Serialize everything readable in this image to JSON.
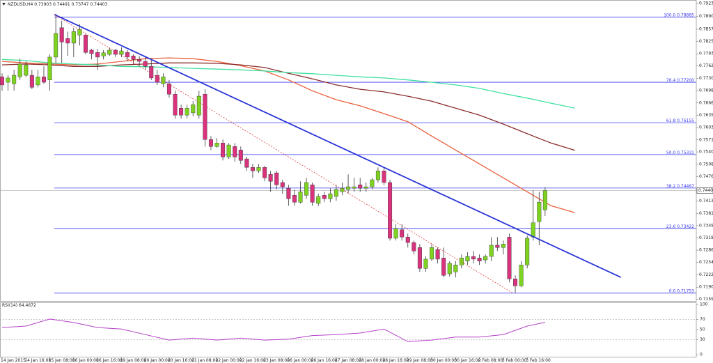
{
  "header": {
    "symbol": "NZDUSD,H4",
    "ohlc": [
      0.73903,
      0.74491,
      0.73747,
      0.74403
    ]
  },
  "chart_data": {
    "type": "candlestick",
    "categories": [
      "14 Jan 2015",
      null,
      null,
      null,
      "14 Jan 16:00",
      null,
      null,
      null,
      "15 Jan 08:00",
      null,
      null,
      null,
      "16 Jan 00:00",
      null,
      null,
      null,
      "16 Jan 16:00",
      null,
      null,
      null,
      "19 Jan 08:00",
      null,
      null,
      null,
      "20 Jan 00:00",
      null,
      null,
      null,
      "20 Jan 16:00",
      null,
      null,
      null,
      "21 Jan 08:00",
      null,
      null,
      null,
      "22 Jan 00:00",
      null,
      null,
      null,
      "22 Jan 16:00",
      null,
      null,
      null,
      "23 Jan 08:00",
      null,
      null,
      null,
      "26 Jan 00:00",
      null,
      null,
      null,
      "26 Jan 16:00",
      null,
      null,
      null,
      "27 Jan 08:00",
      null,
      null,
      null,
      "28 Jan 00:00",
      null,
      null,
      null,
      "28 Jan 16:00",
      null,
      null,
      null,
      "29 Jan 08:00",
      null,
      null,
      null,
      "30 Jan 00:00",
      null,
      null,
      null,
      "30 Jan 16:00",
      null,
      null,
      null,
      "2 Feb 08:00",
      null,
      null,
      null,
      "3 Feb 00:00",
      null,
      null,
      null,
      "3 Feb 16:00",
      null,
      null,
      null
    ],
    "candles": [
      [
        0.7734,
        0.7743,
        0.7698,
        0.7713
      ],
      [
        0.772,
        0.7738,
        0.7698,
        0.7731
      ],
      [
        0.7716,
        0.7752,
        0.7698,
        0.7738
      ],
      [
        0.7734,
        0.7781,
        0.7726,
        0.7767
      ],
      [
        0.7738,
        0.7774,
        0.7734,
        0.7765
      ],
      [
        0.7738,
        0.7752,
        0.7702,
        0.7707
      ],
      [
        0.7713,
        0.7752,
        0.7707,
        0.7734
      ],
      [
        0.7734,
        0.7761,
        0.7716,
        0.772
      ],
      [
        0.7726,
        0.7792,
        0.7698,
        0.7785
      ],
      [
        0.7785,
        0.7897,
        0.777,
        0.7846
      ],
      [
        0.7861,
        0.7879,
        0.777,
        0.7824
      ],
      [
        0.7833,
        0.7851,
        0.7788,
        0.7821
      ],
      [
        0.7821,
        0.7861,
        0.7785,
        0.7851
      ],
      [
        0.7842,
        0.787,
        0.7815,
        0.7857
      ],
      [
        0.7842,
        0.7846,
        0.7792,
        0.7797
      ],
      [
        0.7803,
        0.7806,
        0.7779,
        0.7794
      ],
      [
        0.7797,
        0.7806,
        0.7752,
        0.7785
      ],
      [
        0.7788,
        0.7803,
        0.7779,
        0.7796
      ],
      [
        0.7792,
        0.781,
        0.7788,
        0.7803
      ],
      [
        0.7803,
        0.7806,
        0.7785,
        0.7792
      ],
      [
        0.7792,
        0.781,
        0.7785,
        0.7801
      ],
      [
        0.7797,
        0.7803,
        0.7774,
        0.7785
      ],
      [
        0.7788,
        0.7792,
        0.7767,
        0.7779
      ],
      [
        0.7779,
        0.7788,
        0.7761,
        0.7774
      ],
      [
        0.7774,
        0.7788,
        0.7752,
        0.7761
      ],
      [
        0.7761,
        0.7779,
        0.7726,
        0.7731
      ],
      [
        0.7738,
        0.7752,
        0.7713,
        0.772
      ],
      [
        0.7716,
        0.7743,
        0.7707,
        0.7734
      ],
      [
        0.7716,
        0.7726,
        0.768,
        0.7689
      ],
      [
        0.7689,
        0.7698,
        0.7626,
        0.7635
      ],
      [
        0.7653,
        0.7662,
        0.7626,
        0.7635
      ],
      [
        0.7635,
        0.7662,
        0.7626,
        0.7653
      ],
      [
        0.7641,
        0.7671,
        0.7632,
        0.7662
      ],
      [
        0.7635,
        0.7698,
        0.7626,
        0.7684
      ],
      [
        0.7689,
        0.7702,
        0.7554,
        0.7572
      ],
      [
        0.7572,
        0.7581,
        0.7545,
        0.7554
      ],
      [
        0.7554,
        0.7576,
        0.7551,
        0.7563
      ],
      [
        0.7563,
        0.7572,
        0.7518,
        0.7527
      ],
      [
        0.7527,
        0.7563,
        0.7522,
        0.7558
      ],
      [
        0.7554,
        0.7563,
        0.7515,
        0.7527
      ],
      [
        0.7545,
        0.7554,
        0.7509,
        0.7518
      ],
      [
        0.7522,
        0.7527,
        0.7491,
        0.75
      ],
      [
        0.75,
        0.7509,
        0.7473,
        0.7491
      ],
      [
        0.7491,
        0.7509,
        0.7486,
        0.75
      ],
      [
        0.75,
        0.7504,
        0.7464,
        0.7473
      ],
      [
        0.7482,
        0.7491,
        0.7437,
        0.7464
      ],
      [
        0.7486,
        0.7491,
        0.7443,
        0.7455
      ],
      [
        0.7461,
        0.7468,
        0.7432,
        0.745
      ],
      [
        0.7446,
        0.7455,
        0.7401,
        0.7419
      ],
      [
        0.7428,
        0.7443,
        0.7401,
        0.741
      ],
      [
        0.741,
        0.7464,
        0.7407,
        0.7437
      ],
      [
        0.7428,
        0.7473,
        0.7419,
        0.7461
      ],
      [
        0.7455,
        0.7461,
        0.7401,
        0.741
      ],
      [
        0.7407,
        0.7432,
        0.74,
        0.7425
      ],
      [
        0.7428,
        0.7437,
        0.741,
        0.7419
      ],
      [
        0.7419,
        0.7446,
        0.741,
        0.7432
      ],
      [
        0.7425,
        0.7455,
        0.7414,
        0.7443
      ],
      [
        0.7437,
        0.7461,
        0.7428,
        0.7446
      ],
      [
        0.7443,
        0.7482,
        0.7432,
        0.745
      ],
      [
        0.7446,
        0.7473,
        0.7437,
        0.745
      ],
      [
        0.7455,
        0.7473,
        0.7437,
        0.7446
      ],
      [
        0.7446,
        0.7461,
        0.7437,
        0.745
      ],
      [
        0.745,
        0.7473,
        0.7443,
        0.7468
      ],
      [
        0.7468,
        0.75,
        0.7461,
        0.7491
      ],
      [
        0.7491,
        0.75,
        0.7454,
        0.7461
      ],
      [
        0.7461,
        0.7468,
        0.7311,
        0.7317
      ],
      [
        0.7317,
        0.7353,
        0.7311,
        0.7342
      ],
      [
        0.7339,
        0.7353,
        0.7311,
        0.732
      ],
      [
        0.732,
        0.7329,
        0.7293,
        0.7306
      ],
      [
        0.7306,
        0.7311,
        0.7275,
        0.7284
      ],
      [
        0.7293,
        0.7302,
        0.723,
        0.7239
      ],
      [
        0.7239,
        0.727,
        0.723,
        0.7263
      ],
      [
        0.7263,
        0.7302,
        0.7258,
        0.7293
      ],
      [
        0.7288,
        0.7293,
        0.7252,
        0.7263
      ],
      [
        0.7266,
        0.7293,
        0.7216,
        0.7221
      ],
      [
        0.7225,
        0.7258,
        0.7218,
        0.7252
      ],
      [
        0.723,
        0.7258,
        0.7216,
        0.7248
      ],
      [
        0.7248,
        0.7275,
        0.7239,
        0.7266
      ],
      [
        0.7258,
        0.7281,
        0.7248,
        0.727
      ],
      [
        0.727,
        0.7284,
        0.7252,
        0.7263
      ],
      [
        0.7266,
        0.7275,
        0.7248,
        0.7258
      ],
      [
        0.7261,
        0.7275,
        0.7252,
        0.727
      ],
      [
        0.727,
        0.732,
        0.7258,
        0.7299
      ],
      [
        0.7299,
        0.732,
        0.7284,
        0.7293
      ],
      [
        0.7293,
        0.7311,
        0.7275,
        0.7302
      ],
      [
        0.732,
        0.7329,
        0.7203,
        0.7212
      ],
      [
        0.7212,
        0.7221,
        0.7176,
        0.7194
      ],
      [
        0.7194,
        0.7258,
        0.7191,
        0.7248
      ],
      [
        0.7248,
        0.7324,
        0.7239,
        0.7317
      ],
      [
        0.732,
        0.7441,
        0.7311,
        0.7357
      ],
      [
        0.736,
        0.7437,
        0.7299,
        0.741
      ],
      [
        0.73903,
        0.74491,
        0.73747,
        0.74403
      ]
    ],
    "bull_color": "#7ed321",
    "bear_color": "#d8337c",
    "ylim": [
      0.71549,
      0.79325
    ],
    "yticks": [
      0.79235,
      {
        "value": 0.789,
        "label": "0.78900"
      },
      {
        "value": 0.7857,
        "label": "0.78570"
      },
      0.78255,
      0.77935,
      {
        "value": 0.7762,
        "label": "0.77620"
      },
      {
        "value": 0.773,
        "label": "0.77300"
      },
      0.76985,
      0.76665,
      {
        "value": 0.7635,
        "label": "0.76350"
      },
      {
        "value": 0.7603,
        "label": "0.76030"
      },
      {
        "value": 0.7571,
        "label": "0.75710"
      },
      {
        "value": 0.754,
        "label": "0.75400"
      },
      {
        "value": 0.7508,
        "label": "0.75080"
      },
      0.74765,
      {
        "value": 0.7413,
        "label": "0.74130"
      },
      {
        "value": 0.7381,
        "label": "0.73810"
      },
      0.73495,
      {
        "value": 0.7318,
        "label": "0.73180"
      },
      {
        "value": 0.7286,
        "label": "0.72860"
      },
      0.72545,
      0.72225,
      0.71905,
      {
        "value": 0.7159,
        "label": "0.71590"
      }
    ],
    "last_price": 0.74403,
    "fibonacci": {
      "start_x": 8.75,
      "color": "#3a3af0",
      "levels": [
        {
          "ratio": "100.0",
          "price": 0.78885
        },
        {
          "ratio": "76.4",
          "price": {
            "value": 0.772,
            "label": "0.77200"
          }
        },
        {
          "ratio": "61.8",
          "price": 0.76155
        },
        {
          "ratio": "50.0",
          "price": 0.75331
        },
        {
          "ratio": "38.2",
          "price": 0.74467
        },
        {
          "ratio": "23.6",
          "price": 0.73422
        },
        {
          "ratio": "0.0",
          "price": 0.71753
        }
      ]
    },
    "overlays": [
      {
        "color": "#e9603c",
        "x": [
          0,
          4,
          8,
          12,
          16,
          20,
          24,
          28,
          32,
          36,
          40,
          44,
          48,
          52,
          56,
          60,
          64,
          68,
          72,
          76,
          80,
          84,
          88,
          92,
          96
        ],
        "values": [
          0.7774,
          0.777,
          0.7767,
          0.7765,
          0.7767,
          0.7774,
          0.7781,
          0.7783,
          0.7781,
          0.7774,
          0.7763,
          0.7749,
          0.7726,
          0.7698,
          0.7675,
          0.7659,
          0.7639,
          0.7618,
          0.7581,
          0.7545,
          0.7509,
          0.7473,
          0.7437,
          0.7401,
          0.7383
        ]
      },
      {
        "color": "#8b2c2c",
        "x": [
          0,
          4,
          8,
          12,
          16,
          20,
          24,
          28,
          32,
          36,
          40,
          44,
          48,
          52,
          56,
          60,
          64,
          68,
          72,
          76,
          80,
          84,
          88,
          92,
          96
        ],
        "values": [
          0.7765,
          0.7767,
          0.7765,
          0.7761,
          0.7761,
          0.7765,
          0.7767,
          0.777,
          0.777,
          0.7769,
          0.7765,
          0.7758,
          0.7743,
          0.7729,
          0.7713,
          0.7702,
          0.7695,
          0.7684,
          0.7671,
          0.7653,
          0.7635,
          0.7612,
          0.7587,
          0.7563,
          0.7544
        ]
      },
      {
        "color": "#3fe0a0",
        "x": [
          0,
          4,
          8,
          12,
          16,
          20,
          24,
          28,
          32,
          36,
          40,
          44,
          48,
          52,
          56,
          60,
          64,
          68,
          72,
          76,
          80,
          84,
          88,
          92,
          96
        ],
        "values": [
          0.7779,
          0.7776,
          0.777,
          0.7767,
          0.7765,
          0.7761,
          0.776,
          0.7758,
          0.7756,
          0.7754,
          0.7752,
          0.7749,
          0.7745,
          0.7742,
          0.7738,
          0.7734,
          0.7731,
          0.7726,
          0.772,
          0.7713,
          0.7704,
          0.7691,
          0.7679,
          0.7666,
          0.7653
        ]
      }
    ],
    "trendlines": [
      {
        "color": "#2a35d8",
        "style": "solid",
        "x": [
          8.75,
          103.7
        ],
        "values": [
          0.7895,
          0.7216
        ]
      },
      {
        "color": "#e04040",
        "style": "dotted",
        "x": [
          8.75,
          85.5
        ],
        "values": [
          0.7895,
          0.7176
        ]
      }
    ],
    "indicator": {
      "type": "line",
      "label": "RSI(14)",
      "color": "#b540c8",
      "x": [
        0,
        4,
        8,
        12,
        16,
        20,
        24,
        28,
        32,
        36,
        40,
        44,
        48,
        52,
        56,
        60,
        64,
        68,
        72,
        76,
        80,
        84,
        88,
        91
      ],
      "values": [
        54,
        57,
        71,
        64,
        54,
        51,
        40,
        29,
        33,
        29,
        33,
        29,
        31,
        38,
        40,
        43,
        51,
        26,
        29,
        35,
        35,
        40,
        57,
        64.4672
      ],
      "ylim": [
        0,
        100
      ],
      "yticks": [
        100,
        70,
        50,
        30,
        0
      ],
      "levels": [
        70,
        30
      ]
    }
  }
}
